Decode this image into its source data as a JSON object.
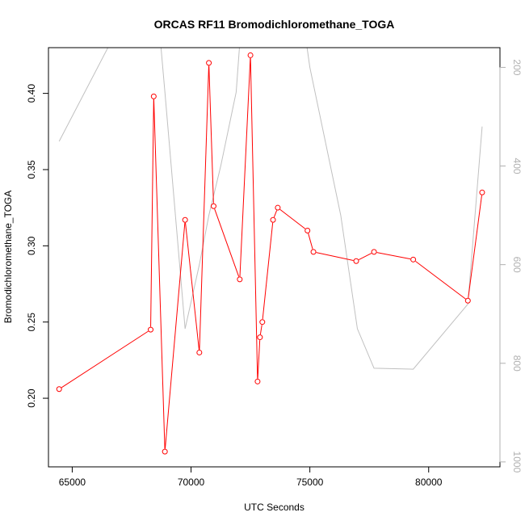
{
  "chart_data": {
    "type": "line",
    "title": "ORCAS RF11 Bromodichloromethane_TOGA",
    "xlabel": "UTC Seconds",
    "ylabel": "Bromodichloromethane_TOGA",
    "xlim": [
      64000,
      83000
    ],
    "ylim": [
      0.155,
      0.43
    ],
    "y2lim": [
      1010,
      160
    ],
    "xticks": [
      65000,
      70000,
      75000,
      80000
    ],
    "yticks": [
      0.2,
      0.25,
      0.3,
      0.35,
      0.4
    ],
    "y2ticks": [
      200,
      400,
      600,
      800,
      1000
    ],
    "xtick_labels": [
      "65000",
      "70000",
      "75000",
      "80000"
    ],
    "ytick_labels": [
      "0.20",
      "0.25",
      "0.30",
      "0.35",
      "0.40"
    ],
    "y2tick_labels": [
      "200",
      "400",
      "600",
      "800",
      "1000"
    ],
    "series": [
      {
        "color": "#ff0000",
        "marker": "circle",
        "x": [
          64450,
          68300,
          68430,
          68900,
          69750,
          70350,
          70750,
          70950,
          72050,
          72500,
          72800,
          72900,
          73000,
          73450,
          73650,
          74900,
          75150,
          76950,
          77700,
          79350,
          81650,
          82250
        ],
        "y": [
          0.206,
          0.245,
          0.398,
          0.165,
          0.317,
          0.23,
          0.42,
          0.326,
          0.278,
          0.425,
          0.211,
          0.24,
          0.25,
          0.317,
          0.325,
          0.31,
          0.296,
          0.29,
          0.296,
          0.291,
          0.264,
          0.335
        ]
      },
      {
        "color": "#c0c0c0",
        "axis": "right",
        "x": [
          64450,
          67150,
          68300,
          68900,
          69750,
          70350,
          70750,
          71250,
          71900,
          72400,
          73450,
          73500,
          74500,
          75000,
          76300,
          77000,
          77700,
          79350,
          81650,
          82250
        ],
        "y": [
          350,
          100,
          -80,
          250,
          730,
          600,
          500,
          400,
          250,
          -80,
          160,
          140,
          30,
          200,
          500,
          730,
          810,
          812,
          680,
          320
        ]
      }
    ]
  }
}
